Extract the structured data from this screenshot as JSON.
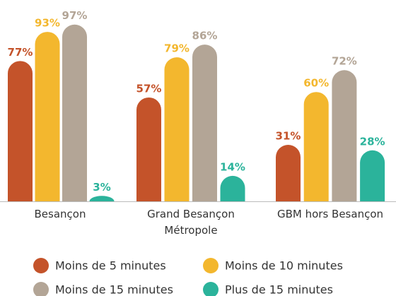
{
  "chart_data": {
    "type": "bar",
    "categories": [
      "Besançon",
      "Grand Besançon Métropole",
      "GBM hors Besançon"
    ],
    "series": [
      {
        "name": "Moins de 5 minutes",
        "color": "#c4532a",
        "values": [
          77,
          57,
          31
        ],
        "value_labels": [
          "77%",
          "57%",
          "31%"
        ]
      },
      {
        "name": "Moins de 10 minutes",
        "color": "#f3b72e",
        "values": [
          93,
          79,
          60
        ],
        "value_labels": [
          "93%",
          "79%",
          "60%"
        ]
      },
      {
        "name": "Moins de 15 minutes",
        "color": "#b3a596",
        "values": [
          97,
          86,
          72
        ],
        "value_labels": [
          "97%",
          "86%",
          "72%"
        ]
      },
      {
        "name": "Plus de 15 minutes",
        "color": "#2bb39b",
        "values": [
          3,
          14,
          28
        ],
        "value_labels": [
          "3%",
          "14%",
          "28%"
        ]
      }
    ]
  }
}
